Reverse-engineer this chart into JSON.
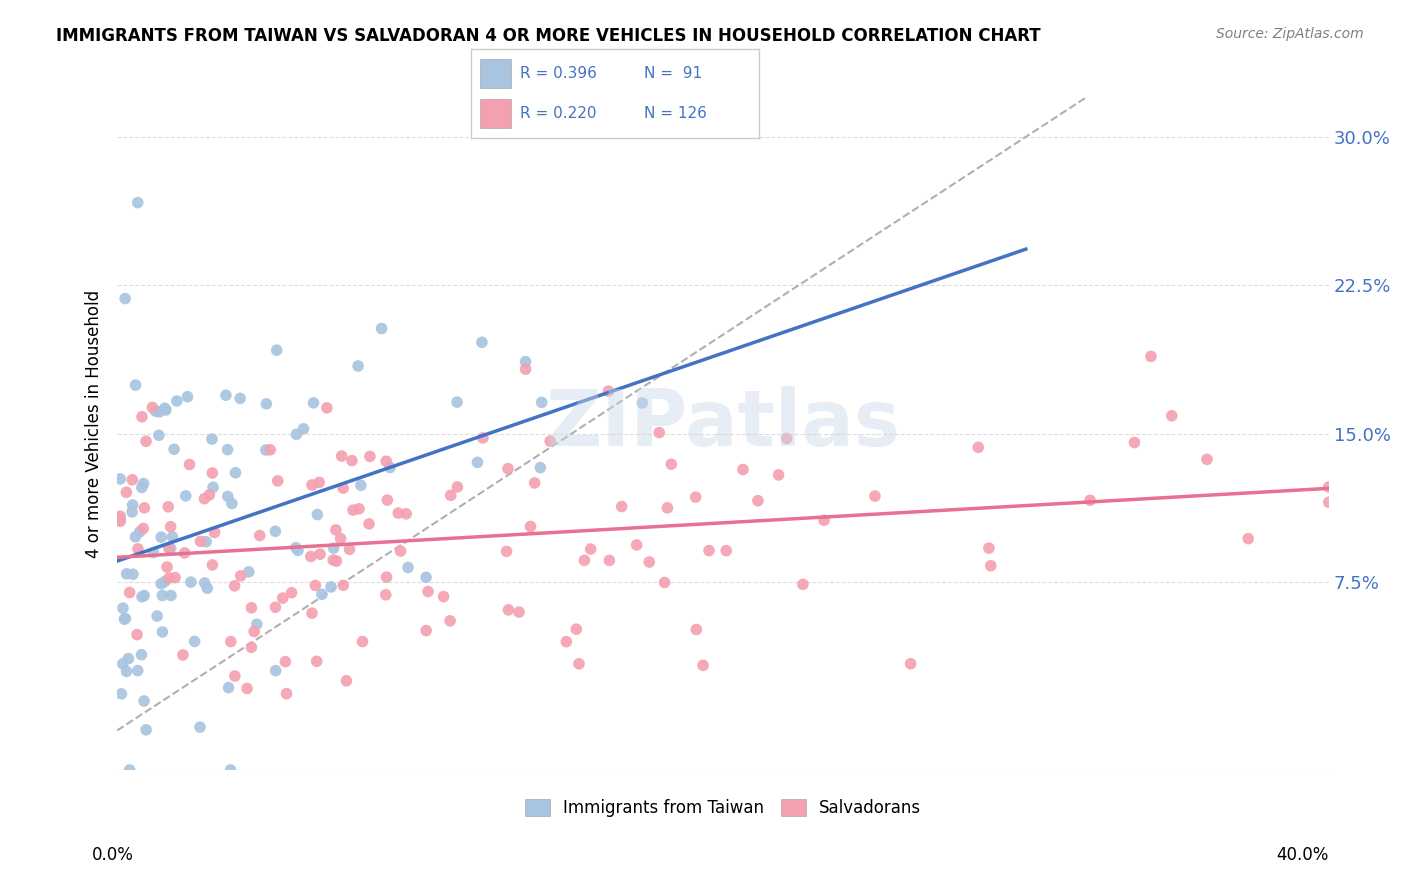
{
  "title": "IMMIGRANTS FROM TAIWAN VS SALVADORAN 4 OR MORE VEHICLES IN HOUSEHOLD CORRELATION CHART",
  "source": "Source: ZipAtlas.com",
  "ylabel": "4 or more Vehicles in Household",
  "xlim": [
    0.0,
    0.4
  ],
  "ylim": [
    -0.02,
    0.33
  ],
  "yticks": [
    0.075,
    0.15,
    0.225,
    0.3
  ],
  "ytick_labels": [
    "7.5%",
    "15.0%",
    "22.5%",
    "30.0%"
  ],
  "taiwan_R": 0.396,
  "taiwan_N": 91,
  "salvadoran_R": 0.22,
  "salvadoran_N": 126,
  "taiwan_color": "#a8c4e0",
  "salvadoran_color": "#f4a0b0",
  "taiwan_line_color": "#4472c4",
  "salvadoran_line_color": "#e87090",
  "diagonal_color": "#b0b0b0",
  "watermark": "ZIPatlas",
  "legend_text_color": "#4472c4"
}
